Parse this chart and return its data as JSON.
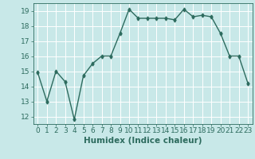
{
  "x": [
    0,
    1,
    2,
    3,
    4,
    5,
    6,
    7,
    8,
    9,
    10,
    11,
    12,
    13,
    14,
    15,
    16,
    17,
    18,
    19,
    20,
    21,
    22,
    23
  ],
  "y": [
    14.9,
    13.0,
    15.0,
    14.3,
    11.8,
    14.7,
    15.5,
    16.0,
    16.0,
    17.5,
    19.1,
    18.5,
    18.5,
    18.5,
    18.5,
    18.4,
    19.1,
    18.6,
    18.7,
    18.6,
    17.5,
    16.0,
    16.0,
    14.2
  ],
  "xlabel": "Humidex (Indice chaleur)",
  "bg_color": "#c8e8e8",
  "line_color": "#2d6b5e",
  "xlim": [
    -0.5,
    23.5
  ],
  "ylim": [
    11.5,
    19.5
  ],
  "yticks": [
    12,
    13,
    14,
    15,
    16,
    17,
    18,
    19
  ],
  "xticks": [
    0,
    1,
    2,
    3,
    4,
    5,
    6,
    7,
    8,
    9,
    10,
    11,
    12,
    13,
    14,
    15,
    16,
    17,
    18,
    19,
    20,
    21,
    22,
    23
  ],
  "grid_color": "#ffffff",
  "tick_color": "#2d6b5e",
  "label_color": "#2d6b5e",
  "font_size_tick": 6.5,
  "font_size_label": 7.5
}
